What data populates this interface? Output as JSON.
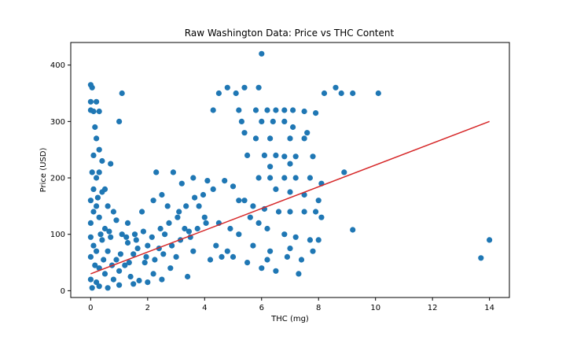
{
  "chart_data": {
    "type": "scatter",
    "title": "Raw Washington Data: Price vs THC Content",
    "xlabel": "THC (mg)",
    "ylabel": "Price (USD)",
    "xlim": [
      -0.7,
      14.7
    ],
    "ylim": [
      -12,
      440
    ],
    "xticks": [
      0,
      2,
      4,
      6,
      8,
      10,
      12,
      14
    ],
    "yticks": [
      0,
      100,
      200,
      300,
      400
    ],
    "grid": false,
    "colors": {
      "points": "#1f77b4",
      "fit": "#d62728"
    },
    "fit_line": {
      "x": [
        0,
        14
      ],
      "y": [
        30,
        300
      ]
    },
    "series": [
      {
        "points": [
          [
            0,
            365
          ],
          [
            0.05,
            360
          ],
          [
            0,
            335
          ],
          [
            0.2,
            335
          ],
          [
            0,
            320
          ],
          [
            0.1,
            318
          ],
          [
            0.3,
            318
          ],
          [
            1.1,
            350
          ],
          [
            1.0,
            300
          ],
          [
            0.15,
            290
          ],
          [
            0.2,
            270
          ],
          [
            0.3,
            250
          ],
          [
            0.4,
            230
          ],
          [
            0.1,
            240
          ],
          [
            0.7,
            225
          ],
          [
            0.3,
            210
          ],
          [
            0.2,
            200
          ],
          [
            0.1,
            180
          ],
          [
            0.4,
            175
          ],
          [
            0,
            160
          ],
          [
            0.2,
            150
          ],
          [
            0.6,
            150
          ],
          [
            0.8,
            140
          ],
          [
            1.3,
            120
          ],
          [
            1.8,
            140
          ],
          [
            0,
            120
          ],
          [
            0.5,
            110
          ],
          [
            1.1,
            100
          ],
          [
            1.6,
            90
          ],
          [
            2.0,
            80
          ],
          [
            2.3,
            210
          ],
          [
            2.9,
            210
          ],
          [
            2.5,
            170
          ],
          [
            3.2,
            190
          ],
          [
            3.6,
            200
          ],
          [
            4.1,
            195
          ],
          [
            4.3,
            180
          ],
          [
            4.7,
            195
          ],
          [
            5.0,
            185
          ],
          [
            5.2,
            160
          ],
          [
            2.2,
            160
          ],
          [
            2.7,
            150
          ],
          [
            3.1,
            140
          ],
          [
            3.8,
            150
          ],
          [
            4.0,
            130
          ],
          [
            4.5,
            120
          ],
          [
            4.9,
            110
          ],
          [
            3.3,
            110
          ],
          [
            2.6,
            100
          ],
          [
            3.5,
            95
          ],
          [
            0,
            60
          ],
          [
            0.3,
            40
          ],
          [
            0.6,
            70
          ],
          [
            0.9,
            55
          ],
          [
            1.2,
            45
          ],
          [
            1.5,
            65
          ],
          [
            1.9,
            50
          ],
          [
            2.2,
            30
          ],
          [
            2.8,
            40
          ],
          [
            3.4,
            25
          ],
          [
            0,
            20
          ],
          [
            0.2,
            15
          ],
          [
            0.5,
            30
          ],
          [
            0.8,
            20
          ],
          [
            1.0,
            35
          ],
          [
            1.4,
            25
          ],
          [
            1.7,
            18
          ],
          [
            0.1,
            80
          ],
          [
            0.4,
            90
          ],
          [
            0.7,
            95
          ],
          [
            3.0,
            60
          ],
          [
            3.6,
            70
          ],
          [
            4.2,
            55
          ],
          [
            4.6,
            60
          ],
          [
            2.4,
            75
          ],
          [
            1.3,
            85
          ],
          [
            0.9,
            125
          ],
          [
            0.3,
            130
          ],
          [
            0,
            95
          ],
          [
            0.2,
            70
          ],
          [
            4.3,
            320
          ],
          [
            4.5,
            350
          ],
          [
            4.8,
            360
          ],
          [
            5.1,
            350
          ],
          [
            5.4,
            360
          ],
          [
            5.9,
            360
          ],
          [
            6.0,
            420
          ],
          [
            5.2,
            320
          ],
          [
            5.8,
            320
          ],
          [
            6.2,
            320
          ],
          [
            6.5,
            320
          ],
          [
            6.8,
            320
          ],
          [
            7.1,
            320
          ],
          [
            7.5,
            318
          ],
          [
            7.9,
            315
          ],
          [
            8.2,
            350
          ],
          [
            8.6,
            360
          ],
          [
            8.8,
            350
          ],
          [
            9.2,
            350
          ],
          [
            10.1,
            350
          ],
          [
            5.3,
            300
          ],
          [
            6.0,
            300
          ],
          [
            6.4,
            300
          ],
          [
            6.8,
            300
          ],
          [
            7.1,
            290
          ],
          [
            7.6,
            280
          ],
          [
            5.4,
            280
          ],
          [
            5.8,
            270
          ],
          [
            6.3,
            270
          ],
          [
            7.0,
            270
          ],
          [
            7.5,
            270
          ],
          [
            5.5,
            240
          ],
          [
            6.1,
            240
          ],
          [
            6.5,
            240
          ],
          [
            6.8,
            238
          ],
          [
            7.2,
            238
          ],
          [
            7.8,
            238
          ],
          [
            8.9,
            210
          ],
          [
            7.0,
            225
          ],
          [
            6.3,
            220
          ],
          [
            5.9,
            200
          ],
          [
            6.3,
            200
          ],
          [
            6.8,
            200
          ],
          [
            7.2,
            200
          ],
          [
            7.7,
            200
          ],
          [
            8.1,
            190
          ],
          [
            6.5,
            180
          ],
          [
            7.0,
            175
          ],
          [
            7.5,
            170
          ],
          [
            8.0,
            160
          ],
          [
            5.7,
            150
          ],
          [
            6.1,
            145
          ],
          [
            6.6,
            140
          ],
          [
            7.0,
            140
          ],
          [
            7.5,
            140
          ],
          [
            7.9,
            140
          ],
          [
            8.1,
            130
          ],
          [
            5.4,
            160
          ],
          [
            5.6,
            130
          ],
          [
            5.9,
            120
          ],
          [
            6.2,
            110
          ],
          [
            6.8,
            100
          ],
          [
            7.2,
            95
          ],
          [
            7.7,
            90
          ],
          [
            8.0,
            90
          ],
          [
            5.2,
            100
          ],
          [
            5.7,
            80
          ],
          [
            6.3,
            70
          ],
          [
            7.0,
            75
          ],
          [
            7.8,
            70
          ],
          [
            4.4,
            80
          ],
          [
            4.8,
            70
          ],
          [
            5.0,
            60
          ],
          [
            5.5,
            50
          ],
          [
            6.0,
            40
          ],
          [
            6.5,
            35
          ],
          [
            7.3,
            30
          ],
          [
            6.2,
            55
          ],
          [
            6.9,
            60
          ],
          [
            7.4,
            55
          ],
          [
            9.2,
            108
          ],
          [
            13.7,
            58
          ],
          [
            14.0,
            90
          ],
          [
            0.05,
            5
          ],
          [
            0.3,
            8
          ],
          [
            0.6,
            5
          ],
          [
            1.0,
            10
          ],
          [
            1.5,
            12
          ],
          [
            2.0,
            15
          ],
          [
            2.5,
            20
          ],
          [
            0.15,
            45
          ],
          [
            0.45,
            55
          ],
          [
            0.75,
            45
          ],
          [
            1.05,
            65
          ],
          [
            1.35,
            50
          ],
          [
            1.65,
            75
          ],
          [
            1.95,
            60
          ],
          [
            2.25,
            55
          ],
          [
            2.55,
            65
          ],
          [
            2.85,
            80
          ],
          [
            3.15,
            90
          ],
          [
            3.45,
            105
          ],
          [
            3.75,
            110
          ],
          [
            4.05,
            120
          ],
          [
            2.15,
            95
          ],
          [
            2.45,
            110
          ],
          [
            2.75,
            120
          ],
          [
            3.05,
            130
          ],
          [
            3.35,
            150
          ],
          [
            3.65,
            165
          ],
          [
            3.95,
            170
          ],
          [
            0.35,
            100
          ],
          [
            0.65,
            105
          ],
          [
            1.25,
            95
          ],
          [
            1.55,
            100
          ],
          [
            1.85,
            105
          ],
          [
            0.1,
            140
          ],
          [
            0.25,
            165
          ],
          [
            0.5,
            180
          ],
          [
            0.05,
            210
          ]
        ]
      }
    ]
  }
}
